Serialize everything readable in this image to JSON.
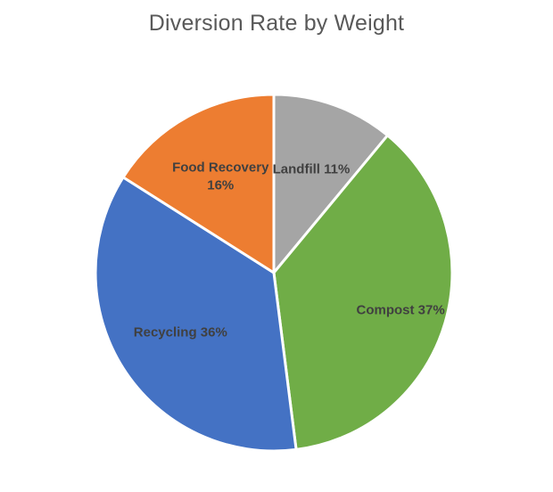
{
  "chart_data": {
    "type": "pie",
    "title": "Diversion Rate by Weight",
    "legend": "none",
    "slices": [
      {
        "name": "Landfill",
        "value": 11,
        "label_lines": [
          "Landfill 11%"
        ],
        "color": "#A5A5A5"
      },
      {
        "name": "Compost",
        "value": 37,
        "label_lines": [
          "Compost 37%"
        ],
        "color": "#70AD47"
      },
      {
        "name": "Recycling",
        "value": 36,
        "label_lines": [
          "Recycling 36%"
        ],
        "color": "#4472C4"
      },
      {
        "name": "Food Recovery",
        "value": 16,
        "label_lines": [
          "Food Recovery",
          "16%"
        ],
        "color": "#ED7D31"
      }
    ]
  }
}
